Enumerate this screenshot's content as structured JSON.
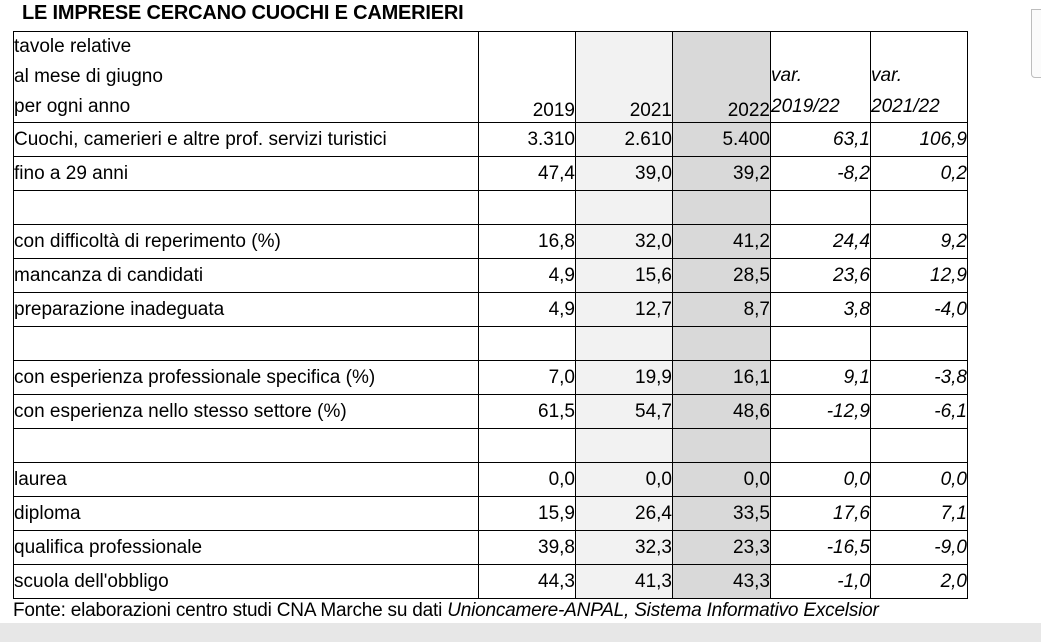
{
  "title": "LE IMPRESE CERCANO CUOCHI E CAMERIERI",
  "table": {
    "header_note_lines": [
      "tavole relative",
      "al mese di giugno",
      "per ogni anno"
    ],
    "columns": [
      "2019",
      "2021",
      "2022"
    ],
    "var_columns": [
      {
        "line1": "var.",
        "line2": "2019/22"
      },
      {
        "line1": "var.",
        "line2": "2021/22"
      }
    ],
    "rows": [
      {
        "label": "Cuochi, camerieri e altre prof. servizi turistici",
        "cells": [
          "3.310",
          "2.610",
          "5.400",
          "63,1",
          "106,9"
        ]
      },
      {
        "label": "fino a 29 anni",
        "cells": [
          "47,4",
          "39,0",
          "39,2",
          "-8,2",
          "0,2"
        ]
      },
      {
        "label": "",
        "cells": [
          "",
          "",
          "",
          "",
          ""
        ]
      },
      {
        "label": "con difficoltà di reperimento (%)",
        "cells": [
          "16,8",
          "32,0",
          "41,2",
          "24,4",
          "9,2"
        ]
      },
      {
        "label": "mancanza di candidati",
        "cells": [
          "4,9",
          "15,6",
          "28,5",
          "23,6",
          "12,9"
        ]
      },
      {
        "label": "preparazione inadeguata",
        "cells": [
          "4,9",
          "12,7",
          "8,7",
          "3,8",
          "-4,0"
        ]
      },
      {
        "label": "",
        "cells": [
          "",
          "",
          "",
          "",
          ""
        ]
      },
      {
        "label": "con esperienza professionale specifica (%)",
        "cells": [
          "7,0",
          "19,9",
          "16,1",
          "9,1",
          "-3,8"
        ]
      },
      {
        "label": "con esperienza nello stesso settore (%)",
        "cells": [
          "61,5",
          "54,7",
          "48,6",
          "-12,9",
          "-6,1"
        ]
      },
      {
        "label": "",
        "cells": [
          "",
          "",
          "",
          "",
          ""
        ]
      },
      {
        "label": "laurea",
        "cells": [
          "0,0",
          "0,0",
          "0,0",
          "0,0",
          "0,0"
        ]
      },
      {
        "label": "diploma",
        "cells": [
          "15,9",
          "26,4",
          "33,5",
          "17,6",
          "7,1"
        ]
      },
      {
        "label": "qualifica professionale",
        "cells": [
          "39,8",
          "32,3",
          "23,3",
          "-16,5",
          "-9,0"
        ]
      },
      {
        "label": "scuola dell'obbligo",
        "cells": [
          "44,3",
          "41,3",
          "43,3",
          "-1,0",
          "2,0"
        ]
      }
    ]
  },
  "footer": {
    "source_regular": "Fonte: elaborazioni centro studi CNA Marche su dati ",
    "source_italic": "Unioncamere-ANPAL, Sistema Informativo Excelsior"
  },
  "colors": {
    "col_2021_bg": "#f2f2f2",
    "col_2022_bg": "#d9d9d9",
    "table_border": "#000000",
    "scrollbar_strip": "#e7e7e7"
  }
}
